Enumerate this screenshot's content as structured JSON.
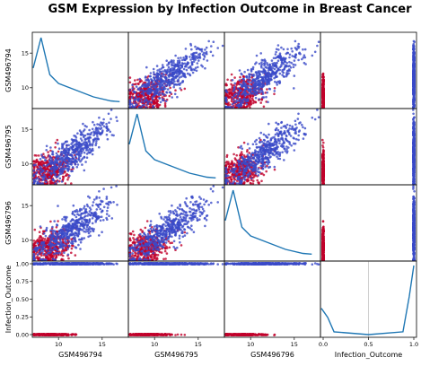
{
  "chart_data": {
    "type": "scatter_matrix",
    "title": "GSM Expression by Infection Outcome in Breast Cancer",
    "variables": [
      "GSM496794",
      "GSM496795",
      "GSM496796",
      "Infection_Outcome"
    ],
    "expression_range": [
      7,
      18
    ],
    "expression_ticks": [
      10,
      15
    ],
    "outcome_ticks": [
      0.0,
      0.5,
      1.0
    ],
    "outcome_tick_labels": [
      "0.0",
      "0.5",
      "1.0"
    ],
    "outcome_y_tick_labels": [
      "0.00",
      "0.25",
      "0.50",
      "0.75",
      "1.00"
    ],
    "outcome_y_ticks": [
      0.0,
      0.25,
      0.5,
      0.75,
      1.0
    ],
    "diagonal": "kde",
    "groups": [
      {
        "outcome": 0,
        "color": "#c0002a",
        "expression_center": 8.8,
        "expression_spread": 0.9
      },
      {
        "outcome": 1,
        "color": "#3a4ac8",
        "expression_center": 11.5,
        "expression_spread": 2.6
      }
    ],
    "density_shape": {
      "peak": 8.0,
      "mode_height": 1.0,
      "tail": [
        [
          8,
          1.0
        ],
        [
          9,
          0.45
        ],
        [
          10,
          0.32
        ],
        [
          12,
          0.22
        ],
        [
          14,
          0.12
        ],
        [
          16,
          0.06
        ],
        [
          17,
          0.05
        ]
      ]
    },
    "outcome_density": [
      [
        -0.02,
        0.38
      ],
      [
        0.05,
        0.25
      ],
      [
        0.12,
        0.04
      ],
      [
        0.5,
        0.0
      ],
      [
        0.88,
        0.04
      ],
      [
        0.95,
        0.55
      ],
      [
        1.0,
        1.0
      ]
    ],
    "line_color": "#1f77b4"
  }
}
